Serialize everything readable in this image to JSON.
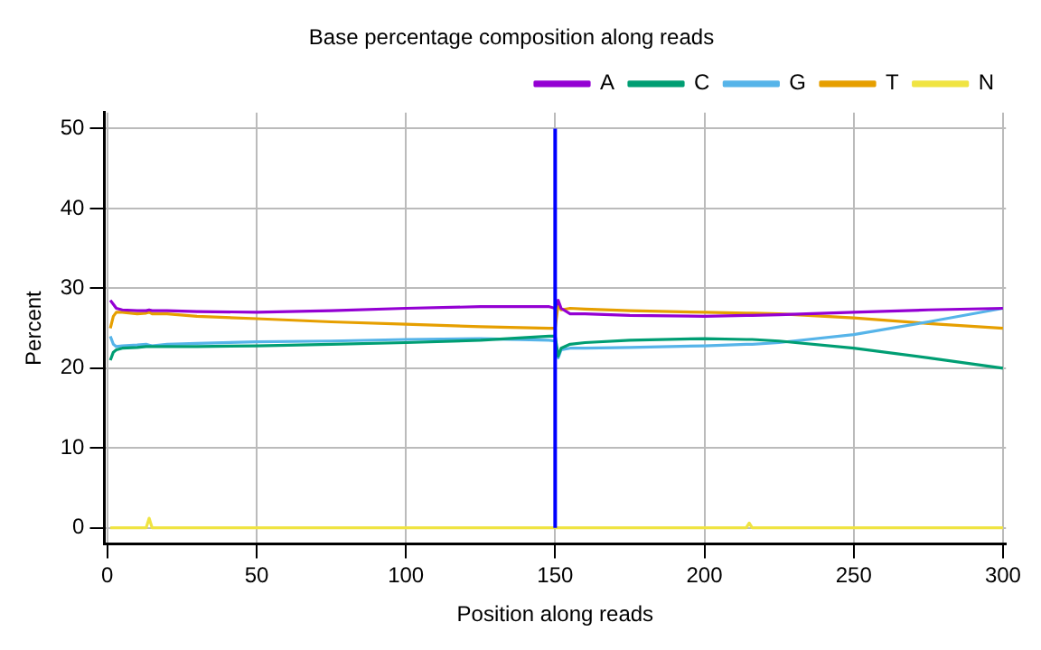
{
  "chart_data": {
    "type": "line",
    "title": "Base percentage composition along reads",
    "xlabel": "Position along reads",
    "ylabel": "Percent",
    "x": [
      1,
      2,
      3,
      5,
      10,
      13,
      14,
      15,
      20,
      30,
      50,
      75,
      100,
      125,
      148,
      150,
      151,
      152,
      155,
      160,
      175,
      200,
      214,
      215,
      216,
      225,
      250,
      275,
      300
    ],
    "series": [
      {
        "name": "A",
        "color": "#9400d3",
        "values": [
          28.5,
          28,
          27.5,
          27.3,
          27.2,
          27.2,
          27.3,
          27.2,
          27.2,
          27.1,
          27,
          27.2,
          27.5,
          27.7,
          27.7,
          27.5,
          28.5,
          27.5,
          26.8,
          26.8,
          26.6,
          26.5,
          26.6,
          26.6,
          26.6,
          26.7,
          27,
          27.3,
          27.5
        ]
      },
      {
        "name": "C",
        "color": "#009e73",
        "values": [
          21,
          22,
          22.3,
          22.5,
          22.6,
          22.7,
          22.7,
          22.7,
          22.7,
          22.7,
          22.8,
          23,
          23.2,
          23.5,
          24,
          24,
          21.5,
          22.5,
          23,
          23.2,
          23.5,
          23.7,
          23.6,
          23.6,
          23.6,
          23.4,
          22.5,
          21.3,
          20
        ]
      },
      {
        "name": "G",
        "color": "#56b4e9",
        "values": [
          24,
          23,
          22.7,
          22.8,
          22.9,
          23,
          22.9,
          22.8,
          23,
          23.1,
          23.3,
          23.4,
          23.6,
          23.7,
          23.5,
          23.4,
          21.3,
          22.3,
          22.5,
          22.5,
          22.6,
          22.8,
          23,
          23,
          23,
          23.2,
          24.2,
          25.8,
          27.5
        ]
      },
      {
        "name": "T",
        "color": "#e69f00",
        "values": [
          25,
          26.5,
          27,
          27,
          26.8,
          26.9,
          27,
          26.8,
          26.8,
          26.5,
          26.2,
          25.8,
          25.5,
          25.2,
          25,
          25,
          28,
          27.3,
          27.5,
          27.4,
          27.2,
          27,
          26.9,
          26.9,
          26.9,
          26.8,
          26.3,
          25.6,
          25
        ]
      },
      {
        "name": "N",
        "color": "#f0e442",
        "values": [
          0,
          0,
          0,
          0,
          0,
          0,
          1.2,
          0,
          0,
          0,
          0,
          0,
          0,
          0,
          0,
          0,
          0,
          0,
          0,
          0,
          0,
          0,
          0,
          0.6,
          0,
          0,
          0,
          0,
          0
        ]
      }
    ],
    "xlim": [
      -1,
      301
    ],
    "xticks": [
      0,
      50,
      100,
      150,
      200,
      250,
      300
    ],
    "ylim": [
      -2,
      52
    ],
    "yticks": [
      0,
      10,
      20,
      30,
      40,
      50
    ],
    "ref_lines": [
      {
        "axis": "x",
        "value": 150,
        "color": "#0000ff"
      }
    ],
    "grid": true,
    "legend": "top right",
    "marker": "none",
    "line_style": "solid"
  }
}
